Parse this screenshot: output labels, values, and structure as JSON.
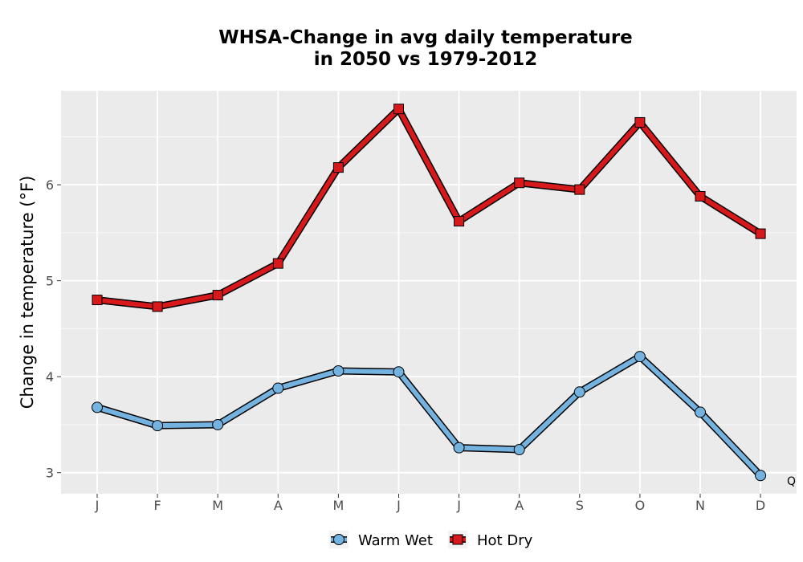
{
  "chart_data": {
    "type": "line",
    "title_lines": [
      "WHSA-Change in avg daily temperature",
      "in 2050 vs 1979-2012"
    ],
    "xlabel": "",
    "ylabel": "Change in temperature (°F)",
    "categories": [
      "J",
      "F",
      "M",
      "A",
      "M",
      "J",
      "J",
      "A",
      "S",
      "O",
      "N",
      "D"
    ],
    "yticks": [
      3,
      4,
      5,
      6
    ],
    "ylim": [
      2.78,
      6.98
    ],
    "grid": true,
    "legend_position": "bottom",
    "annotation": "Q",
    "series": [
      {
        "name": "Warm Wet",
        "marker": "circle",
        "color": "#74b3e0",
        "values": [
          3.68,
          3.49,
          3.5,
          3.88,
          4.06,
          4.05,
          3.26,
          3.24,
          3.84,
          4.21,
          3.63,
          2.97
        ]
      },
      {
        "name": "Hot Dry",
        "marker": "square",
        "color": "#d7191c",
        "values": [
          4.8,
          4.73,
          4.85,
          5.18,
          6.18,
          6.79,
          5.62,
          6.02,
          5.95,
          6.65,
          5.88,
          5.49
        ]
      }
    ]
  }
}
